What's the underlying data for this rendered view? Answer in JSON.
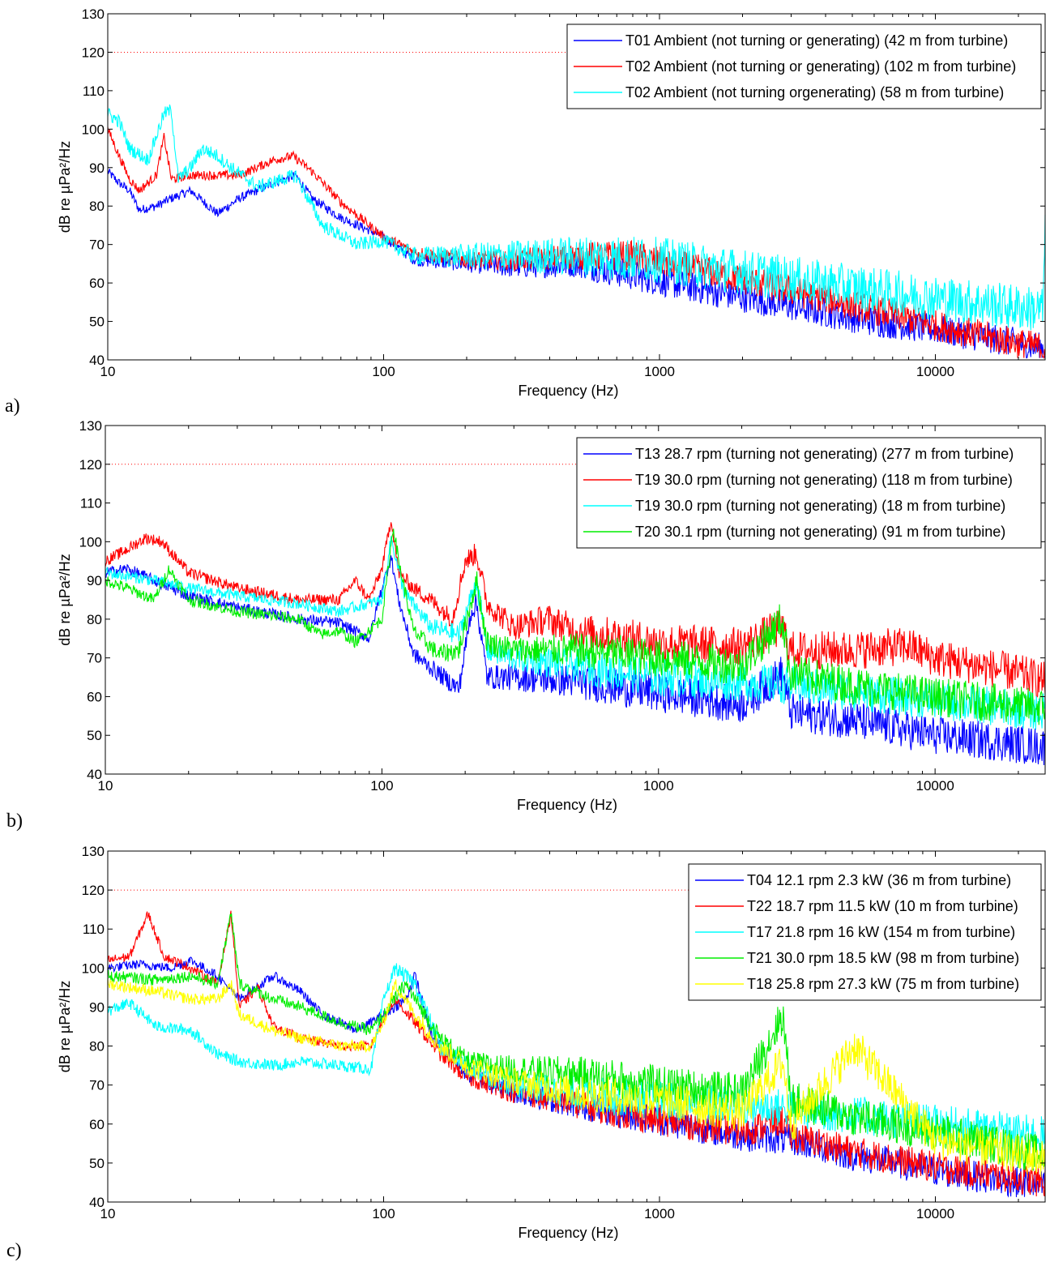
{
  "chart_data": [
    {
      "type": "line",
      "panel_label": "a)",
      "xlabel": "Frequency (Hz)",
      "ylabel": "dB re µPa²/Hz",
      "x_scale": "log",
      "xlim": [
        10,
        25000
      ],
      "ylim": [
        40,
        130
      ],
      "xticks": [
        10,
        100,
        1000,
        10000
      ],
      "xtick_labels": [
        "10",
        "100",
        "1000",
        "10000"
      ],
      "yticks": [
        40,
        50,
        60,
        70,
        80,
        90,
        100,
        110,
        120,
        130
      ],
      "reference_line": {
        "y": 120,
        "color": "#ff0000",
        "style": "dotted"
      },
      "legend_position": "top-right",
      "series": [
        {
          "name": "T01 Ambient (not turning or generating) (42 m from turbine)",
          "color": "#0000ff",
          "spread": 4,
          "x": [
            10,
            11,
            12,
            13,
            15,
            17,
            20,
            25,
            30,
            40,
            48,
            55,
            70,
            100,
            130,
            200,
            300,
            500,
            800,
            1500,
            3000,
            6000,
            10000,
            18000,
            24500,
            25000
          ],
          "y": [
            89,
            86,
            84,
            79,
            80,
            82,
            84,
            78,
            82,
            86,
            88,
            82,
            77,
            72,
            66,
            65,
            64,
            65,
            62,
            58,
            54,
            50,
            48,
            45,
            43,
            43
          ]
        },
        {
          "name": "T02 Ambient (not turning or generating) (102 m from turbine)",
          "color": "#ff0000",
          "spread": 4,
          "x": [
            10,
            11,
            12,
            13,
            15,
            16,
            17,
            20,
            25,
            30,
            40,
            47,
            55,
            70,
            100,
            130,
            200,
            300,
            500,
            800,
            1500,
            3000,
            6000,
            10000,
            18000,
            25000
          ],
          "y": [
            100,
            93,
            87,
            84,
            88,
            98,
            87,
            88,
            88,
            88,
            92,
            93,
            89,
            81,
            72,
            68,
            66,
            66,
            67,
            67,
            63,
            58,
            53,
            49,
            45,
            43
          ]
        },
        {
          "name": "T02 Ambient (not turning orgenerating) (58 m from turbine)",
          "color": "#00ffff",
          "spread": 6,
          "x": [
            10,
            11,
            12,
            14,
            16,
            17,
            18,
            20,
            22,
            25,
            28,
            35,
            48,
            60,
            80,
            100,
            130,
            200,
            500,
            1000,
            3000,
            10000,
            24500,
            25000
          ],
          "y": [
            104,
            102,
            95,
            92,
            104,
            105,
            87,
            90,
            95,
            93,
            90,
            85,
            88,
            75,
            70,
            71,
            67,
            67,
            67,
            66,
            61,
            56,
            53,
            72
          ]
        }
      ]
    },
    {
      "type": "line",
      "panel_label": "b)",
      "xlabel": "Frequency (Hz)",
      "ylabel": "dB re µPa²/Hz",
      "x_scale": "log",
      "xlim": [
        10,
        25000
      ],
      "ylim": [
        40,
        130
      ],
      "xticks": [
        10,
        100,
        1000,
        10000
      ],
      "xtick_labels": [
        "10",
        "100",
        "1000",
        "10000"
      ],
      "yticks": [
        40,
        50,
        60,
        70,
        80,
        90,
        100,
        110,
        120,
        130
      ],
      "reference_line": {
        "y": 120,
        "color": "#ff0000",
        "style": "dotted"
      },
      "legend_position": "top-right",
      "series": [
        {
          "name": "T13 28.7 rpm (turning not generating) (277 m from turbine)",
          "color": "#0000ff",
          "spread": 5,
          "x": [
            10,
            12,
            15,
            20,
            30,
            50,
            70,
            90,
            100,
            108,
            115,
            130,
            160,
            190,
            210,
            220,
            240,
            300,
            500,
            1000,
            2000,
            2800,
            3000,
            5000,
            10000,
            25000
          ],
          "y": [
            92,
            93,
            90,
            86,
            83,
            80,
            79,
            75,
            88,
            96,
            85,
            71,
            66,
            62,
            82,
            84,
            65,
            65,
            64,
            61,
            58,
            66,
            56,
            54,
            50,
            47
          ]
        },
        {
          "name": "T19 30.0 rpm (turning not generating) (118 m from turbine)",
          "color": "#ff0000",
          "spread": 5,
          "x": [
            10,
            12,
            14,
            16,
            20,
            30,
            50,
            70,
            80,
            90,
            100,
            108,
            115,
            130,
            150,
            180,
            200,
            220,
            240,
            300,
            400,
            500,
            1000,
            2000,
            2800,
            3000,
            5000,
            8000,
            10000,
            20000,
            25000
          ],
          "y": [
            95,
            98,
            101,
            100,
            92,
            88,
            85,
            85,
            90,
            85,
            93,
            106,
            92,
            88,
            85,
            80,
            95,
            97,
            84,
            78,
            80,
            77,
            74,
            73,
            78,
            72,
            72,
            73,
            70,
            66,
            64
          ]
        },
        {
          "name": "T19 30.0 rpm (turning not generating) (18 m from turbine)",
          "color": "#00ffff",
          "spread": 5,
          "x": [
            10,
            15,
            20,
            30,
            50,
            70,
            100,
            108,
            120,
            150,
            190,
            220,
            240,
            300,
            500,
            1000,
            3000,
            10000,
            25000
          ],
          "y": [
            92,
            90,
            88,
            86,
            84,
            82,
            85,
            101,
            87,
            78,
            76,
            90,
            72,
            70,
            68,
            65,
            63,
            59,
            56
          ]
        },
        {
          "name": "T20 30.1 rpm (turning not generating) (91 m from turbine)",
          "color": "#00ee00",
          "spread": 5,
          "x": [
            10,
            12,
            15,
            17,
            20,
            30,
            50,
            60,
            70,
            80,
            100,
            110,
            115,
            130,
            160,
            190,
            220,
            240,
            300,
            500,
            1000,
            2000,
            2800,
            3000,
            5000,
            10000,
            25000
          ],
          "y": [
            90,
            88,
            85,
            93,
            85,
            82,
            80,
            76,
            77,
            74,
            80,
            104,
            95,
            77,
            71,
            72,
            90,
            74,
            72,
            72,
            70,
            68,
            80,
            66,
            63,
            60,
            57
          ]
        }
      ]
    },
    {
      "type": "line",
      "panel_label": "c)",
      "xlabel": "Frequency (Hz)",
      "ylabel": "dB re µPa²/Hz",
      "x_scale": "log",
      "xlim": [
        10,
        25000
      ],
      "ylim": [
        40,
        130
      ],
      "xticks": [
        10,
        100,
        1000,
        10000
      ],
      "xtick_labels": [
        "10",
        "100",
        "1000",
        "10000"
      ],
      "yticks": [
        40,
        50,
        60,
        70,
        80,
        90,
        100,
        110,
        120,
        130
      ],
      "reference_line": {
        "y": 120,
        "color": "#ff0000",
        "style": "dotted"
      },
      "legend_position": "top-right",
      "series": [
        {
          "name": "T04 12.1 rpm 2.3 kW (36 m from turbine)",
          "color": "#0000ff",
          "spread": 4,
          "x": [
            10,
            13,
            17,
            20,
            25,
            30,
            40,
            50,
            60,
            80,
            100,
            120,
            130,
            150,
            200,
            300,
            500,
            1000,
            2000,
            3000,
            5000,
            10000,
            25000
          ],
          "y": [
            100,
            101,
            100,
            102,
            98,
            92,
            98,
            94,
            88,
            84,
            88,
            92,
            98,
            82,
            73,
            68,
            65,
            61,
            57,
            56,
            52,
            48,
            44
          ]
        },
        {
          "name": "T22 18.7 rpm 11.5 kW (10 m from turbine)",
          "color": "#ff0000",
          "spread": 4,
          "x": [
            10,
            12,
            14,
            16,
            20,
            25,
            28,
            30,
            35,
            40,
            50,
            70,
            90,
            100,
            110,
            130,
            160,
            200,
            300,
            500,
            1000,
            2000,
            2800,
            3000,
            5000,
            10000,
            25000
          ],
          "y": [
            102,
            103,
            114,
            103,
            100,
            96,
            114,
            90,
            95,
            85,
            82,
            80,
            80,
            87,
            92,
            86,
            78,
            72,
            68,
            65,
            61,
            58,
            61,
            57,
            53,
            49,
            45
          ]
        },
        {
          "name": "T17 21.8 rpm 16 kW (154 m from turbine)",
          "color": "#00ffff",
          "spread": 5,
          "x": [
            10,
            12,
            15,
            20,
            25,
            30,
            40,
            50,
            70,
            90,
            100,
            110,
            130,
            160,
            200,
            300,
            500,
            1000,
            3000,
            10000,
            25000
          ],
          "y": [
            89,
            91,
            85,
            84,
            78,
            76,
            75,
            76,
            75,
            74,
            92,
            100,
            96,
            80,
            75,
            70,
            68,
            66,
            64,
            60,
            57
          ]
        },
        {
          "name": "T21 30.0 rpm 18.5 kW (98 m from turbine)",
          "color": "#00ee00",
          "spread": 5,
          "x": [
            10,
            15,
            20,
            25,
            28,
            30,
            40,
            50,
            70,
            90,
            100,
            120,
            130,
            160,
            200,
            300,
            500,
            1000,
            2000,
            2800,
            3000,
            5000,
            10000,
            25000
          ],
          "y": [
            98,
            97,
            98,
            96,
            114,
            96,
            92,
            90,
            86,
            84,
            88,
            96,
            92,
            82,
            76,
            74,
            73,
            70,
            68,
            88,
            66,
            62,
            58,
            52
          ]
        },
        {
          "name": "T18 25.8 rpm 27.3 kW (75 m from turbine)",
          "color": "#ffff00",
          "spread": 5,
          "x": [
            10,
            15,
            20,
            25,
            28,
            30,
            40,
            50,
            70,
            90,
            100,
            110,
            130,
            160,
            200,
            300,
            500,
            1000,
            2000,
            2800,
            3000,
            5100,
            10000,
            25000
          ],
          "y": [
            96,
            94,
            92,
            92,
            96,
            88,
            84,
            82,
            80,
            80,
            86,
            96,
            88,
            80,
            75,
            71,
            68,
            66,
            63,
            76,
            60,
            80,
            56,
            51
          ]
        }
      ]
    }
  ]
}
